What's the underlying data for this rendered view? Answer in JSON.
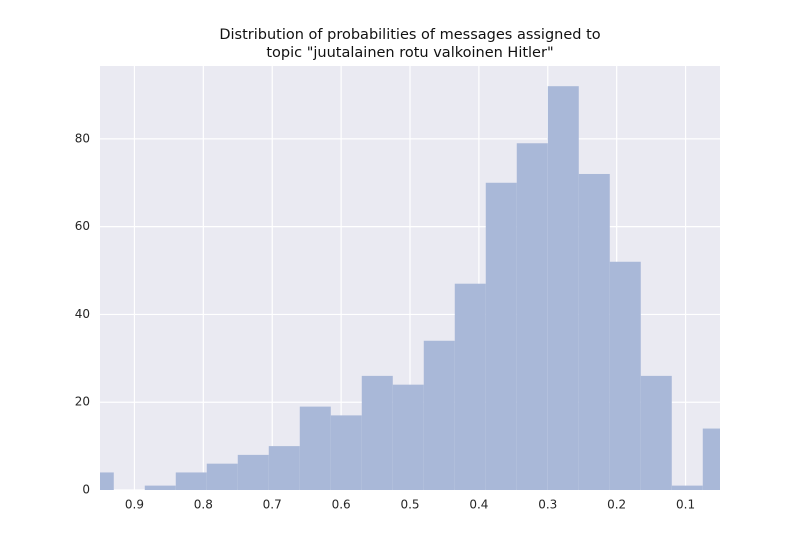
{
  "chart_data": {
    "type": "histogram",
    "title": [
      "Distribution of probabilities of messages assigned to",
      "topic \"juutalainen rotu valkoinen Hitler\""
    ],
    "bins": [
      0.975,
      0.93,
      0.885,
      0.84,
      0.795,
      0.75,
      0.705,
      0.66,
      0.615,
      0.57,
      0.525,
      0.48,
      0.435,
      0.39,
      0.345,
      0.3,
      0.255,
      0.21,
      0.165,
      0.12,
      0.075,
      0.03
    ],
    "values": [
      4,
      0,
      1,
      4,
      6,
      8,
      10,
      19,
      17,
      26,
      24,
      34,
      47,
      70,
      79,
      92,
      72,
      52,
      26,
      1,
      14
    ],
    "color": "#a9b8d8",
    "xlim": [
      0.95,
      0.05
    ],
    "xticks": [
      0.9,
      0.8,
      0.7,
      0.6,
      0.5,
      0.4,
      0.3,
      0.2,
      0.1
    ],
    "ylim": [
      0,
      96.6
    ],
    "yticks": [
      0,
      20,
      40,
      60,
      80
    ],
    "grid": true
  }
}
